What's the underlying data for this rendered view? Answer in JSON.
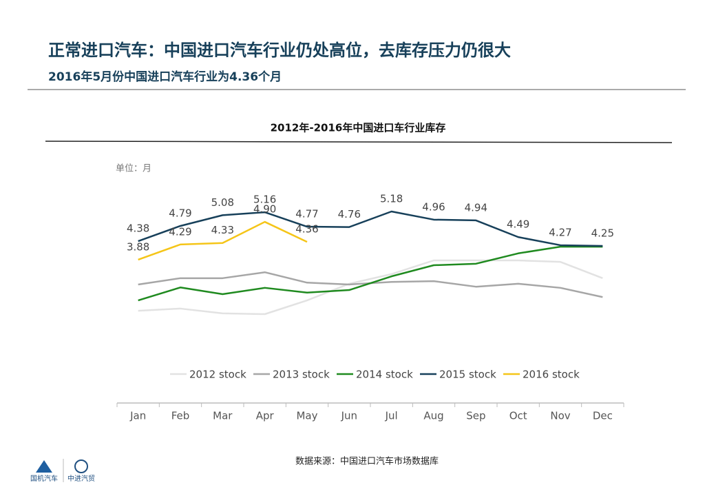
{
  "header": {
    "title": "正常进口汽车：中国进口汽车行业仍处高位，去库存压力仍很大",
    "subtitle": "2016年5月份中国进口汽车行业为4.36个月",
    "logo_left": "国机汽车",
    "logo_right": "中进汽贸"
  },
  "chart_data": {
    "type": "line",
    "title": "2012年-2016年中国进口车行业库存",
    "unit_label": "单位：月",
    "source": "数据来源：中国进口汽车市场数据库",
    "categories": [
      "Jan",
      "Feb",
      "Mar",
      "Apr",
      "May",
      "Jun",
      "Jul",
      "Aug",
      "Sep",
      "Oct",
      "Nov",
      "Dec"
    ],
    "series": [
      {
        "name": "2012 stock",
        "color": "#e2e2e2",
        "values": [
          2.5,
          2.56,
          2.43,
          2.41,
          2.78,
          3.23,
          3.49,
          3.86,
          3.86,
          3.86,
          3.82,
          3.38
        ]
      },
      {
        "name": "2013 stock",
        "color": "#a6a6a6",
        "values": [
          3.21,
          3.38,
          3.38,
          3.54,
          3.26,
          3.21,
          3.28,
          3.3,
          3.15,
          3.23,
          3.12,
          2.87
        ]
      },
      {
        "name": "2014 stock",
        "color": "#1f8a1f",
        "values": [
          2.78,
          3.13,
          2.95,
          3.12,
          2.99,
          3.06,
          3.43,
          3.73,
          3.77,
          4.05,
          4.23,
          4.23
        ]
      },
      {
        "name": "2015 stock",
        "color": "#17405a",
        "values": [
          4.38,
          4.79,
          5.08,
          5.16,
          4.77,
          4.76,
          5.18,
          4.96,
          4.94,
          4.49,
          4.27,
          4.25
        ],
        "value_labels": [
          "4.38",
          "4.79",
          "5.08",
          "5.16",
          "4.77",
          "4.76",
          "5.18",
          "4.96",
          "4.94",
          "4.49",
          "4.27",
          "4.25"
        ]
      },
      {
        "name": "2016 stock",
        "color": "#f5c518",
        "values": [
          3.88,
          4.29,
          4.33,
          4.9,
          4.36,
          null,
          null,
          null,
          null,
          null,
          null,
          null
        ],
        "value_labels": [
          "3.88",
          "4.29",
          "4.33",
          "4.90",
          "4.36",
          null,
          null,
          null,
          null,
          null,
          null,
          null
        ]
      }
    ]
  }
}
